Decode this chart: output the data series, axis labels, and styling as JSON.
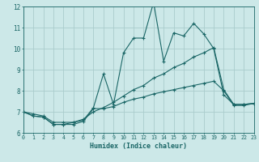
{
  "xlabel": "Humidex (Indice chaleur)",
  "xlim": [
    0,
    23
  ],
  "ylim": [
    6,
    12
  ],
  "yticks": [
    6,
    7,
    8,
    9,
    10,
    11,
    12
  ],
  "xticks": [
    0,
    1,
    2,
    3,
    4,
    5,
    6,
    7,
    8,
    9,
    10,
    11,
    12,
    13,
    14,
    15,
    16,
    17,
    18,
    19,
    20,
    21,
    22,
    23
  ],
  "bg_color": "#cce8e8",
  "grid_color": "#aacccc",
  "line_color": "#1a6666",
  "lines": [
    {
      "x": [
        0,
        1,
        2,
        3,
        4,
        5,
        6,
        7,
        8,
        9,
        10,
        11,
        12,
        13,
        14,
        15,
        16,
        17,
        18,
        19,
        20,
        21,
        22,
        23
      ],
      "y": [
        7.0,
        6.8,
        6.75,
        6.4,
        6.4,
        6.4,
        6.55,
        7.15,
        7.15,
        7.25,
        7.45,
        7.6,
        7.7,
        7.85,
        7.95,
        8.05,
        8.15,
        8.25,
        8.35,
        8.45,
        8.0,
        7.3,
        7.3,
        7.4
      ]
    },
    {
      "x": [
        0,
        1,
        2,
        3,
        4,
        5,
        6,
        7,
        8,
        9,
        10,
        11,
        12,
        13,
        14,
        15,
        16,
        17,
        18,
        19,
        20,
        21,
        22,
        23
      ],
      "y": [
        7.0,
        6.8,
        6.75,
        6.4,
        6.4,
        6.5,
        6.6,
        7.2,
        8.8,
        7.35,
        9.8,
        10.5,
        10.5,
        12.2,
        9.4,
        10.75,
        10.6,
        11.2,
        10.7,
        10.0,
        7.8,
        7.35,
        7.35,
        7.4
      ]
    },
    {
      "x": [
        0,
        1,
        2,
        3,
        4,
        5,
        6,
        7,
        8,
        9,
        10,
        11,
        12,
        13,
        14,
        15,
        16,
        17,
        18,
        19,
        20,
        21,
        22,
        23
      ],
      "y": [
        7.0,
        6.9,
        6.8,
        6.5,
        6.5,
        6.5,
        6.65,
        7.0,
        7.2,
        7.45,
        7.75,
        8.05,
        8.25,
        8.6,
        8.8,
        9.1,
        9.3,
        9.6,
        9.8,
        10.05,
        8.05,
        7.35,
        7.35,
        7.4
      ]
    }
  ]
}
